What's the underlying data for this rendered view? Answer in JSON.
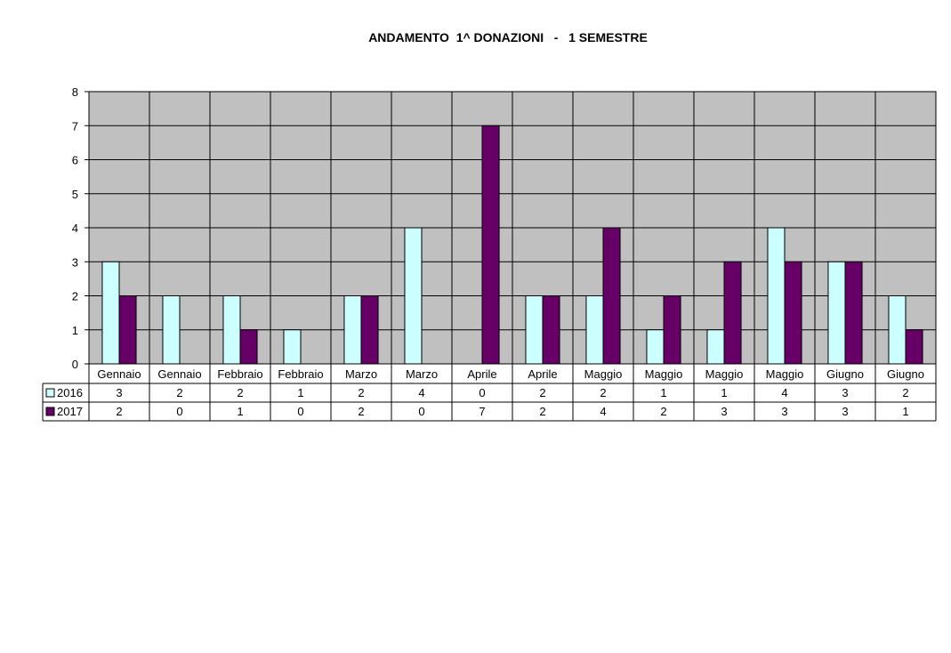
{
  "chart_data": {
    "type": "bar",
    "title": "ANDAMENTO  1^ DONAZIONI   -   1 SEMESTRE",
    "categories": [
      "Gennaio",
      "Gennaio",
      "Febbraio",
      "Febbraio",
      "Marzo",
      "Marzo",
      "Aprile",
      "Aprile",
      "Maggio",
      "Maggio",
      "Maggio",
      "Maggio",
      "Giugno",
      "Giugno"
    ],
    "series": [
      {
        "name": "2016",
        "color": "#ccffff",
        "values": [
          3,
          2,
          2,
          1,
          2,
          4,
          0,
          2,
          2,
          1,
          1,
          4,
          3,
          2
        ]
      },
      {
        "name": "2017",
        "color": "#660066",
        "values": [
          2,
          0,
          1,
          0,
          2,
          0,
          7,
          2,
          4,
          2,
          3,
          3,
          3,
          1
        ]
      }
    ],
    "ylim": [
      0,
      8
    ],
    "yticks": [
      0,
      1,
      2,
      3,
      4,
      5,
      6,
      7,
      8
    ],
    "plot_background": "#c0c0c0",
    "grid": true,
    "legend": "data-table"
  }
}
